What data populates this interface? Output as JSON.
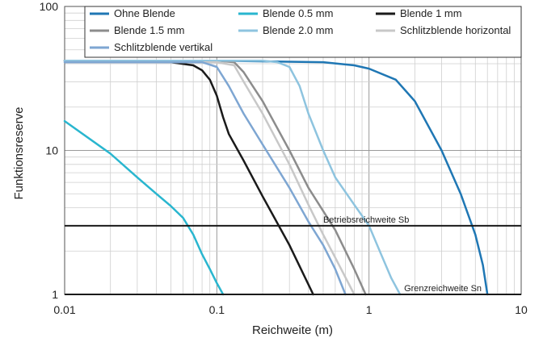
{
  "chart_data": {
    "type": "line",
    "x_scale": "log",
    "y_scale": "log",
    "xlim": [
      0.01,
      10
    ],
    "ylim": [
      1,
      100
    ],
    "xlabel": "Reichweite (m)",
    "ylabel": "Funktionsreserve",
    "x_ticks": [
      "0.01",
      "0.1",
      "1",
      "10"
    ],
    "y_ticks": [
      "1",
      "10",
      "100"
    ],
    "grid": true,
    "legend_position": "top",
    "series": [
      {
        "name": "Ohne Blende",
        "color": "#1f77b4",
        "x": [
          0.01,
          0.1,
          0.5,
          0.8,
          1.0,
          1.5,
          2.0,
          3.0,
          4.0,
          5.0,
          5.6,
          6.0
        ],
        "y": [
          42,
          42,
          41,
          39,
          37,
          31,
          22,
          10,
          5,
          2.6,
          1.6,
          1.0
        ]
      },
      {
        "name": "Blende 0.5 mm",
        "color": "#29b6cf",
        "x": [
          0.01,
          0.02,
          0.03,
          0.04,
          0.05,
          0.06,
          0.07,
          0.08,
          0.09,
          0.1,
          0.11
        ],
        "y": [
          16,
          9.5,
          6.5,
          5.0,
          4.1,
          3.4,
          2.6,
          1.9,
          1.5,
          1.2,
          1.0
        ]
      },
      {
        "name": "Blende 1 mm",
        "color": "#1a1a1a",
        "x": [
          0.01,
          0.05,
          0.07,
          0.08,
          0.09,
          0.1,
          0.11,
          0.12,
          0.15,
          0.2,
          0.3,
          0.43
        ],
        "y": [
          42,
          41,
          39,
          36,
          31,
          24,
          17,
          13,
          8.5,
          4.8,
          2.2,
          1.0
        ]
      },
      {
        "name": "Blende 1.5 mm",
        "color": "#8c8c8c",
        "x": [
          0.01,
          0.1,
          0.13,
          0.15,
          0.2,
          0.3,
          0.4,
          0.6,
          0.8,
          0.95
        ],
        "y": [
          42,
          42,
          41,
          35,
          22,
          10,
          5.5,
          2.8,
          1.5,
          1.0
        ]
      },
      {
        "name": "Blende 2.0 mm",
        "color": "#8ec4df",
        "x": [
          0.01,
          0.2,
          0.25,
          0.3,
          0.35,
          0.4,
          0.5,
          0.6,
          0.8,
          1.0,
          1.2,
          1.4,
          1.6
        ],
        "y": [
          42,
          42,
          41,
          38,
          28,
          18,
          10,
          6.5,
          4.2,
          3.0,
          1.9,
          1.3,
          1.0
        ]
      },
      {
        "name": "Schlitzblende horizontal",
        "color": "#c8c8c8",
        "x": [
          0.01,
          0.1,
          0.13,
          0.15,
          0.2,
          0.3,
          0.4,
          0.5,
          0.6,
          0.8
        ],
        "y": [
          41,
          41,
          39,
          30,
          18,
          8.0,
          4.2,
          2.6,
          1.8,
          1.0
        ]
      },
      {
        "name": "Schlitzblende vertikal",
        "color": "#7ea6d2",
        "x": [
          0.01,
          0.08,
          0.1,
          0.12,
          0.15,
          0.2,
          0.3,
          0.4,
          0.5,
          0.6,
          0.7
        ],
        "y": [
          41,
          41,
          38,
          28,
          18,
          11,
          5.5,
          3.2,
          2.2,
          1.5,
          1.0
        ]
      }
    ],
    "hlines": [
      {
        "y": 3,
        "label": "Betriebsreichweite Sb",
        "label_x": 0.5
      },
      {
        "y": 1,
        "label": "Grenzreichweite Sn",
        "label_x": 1.7
      }
    ]
  }
}
